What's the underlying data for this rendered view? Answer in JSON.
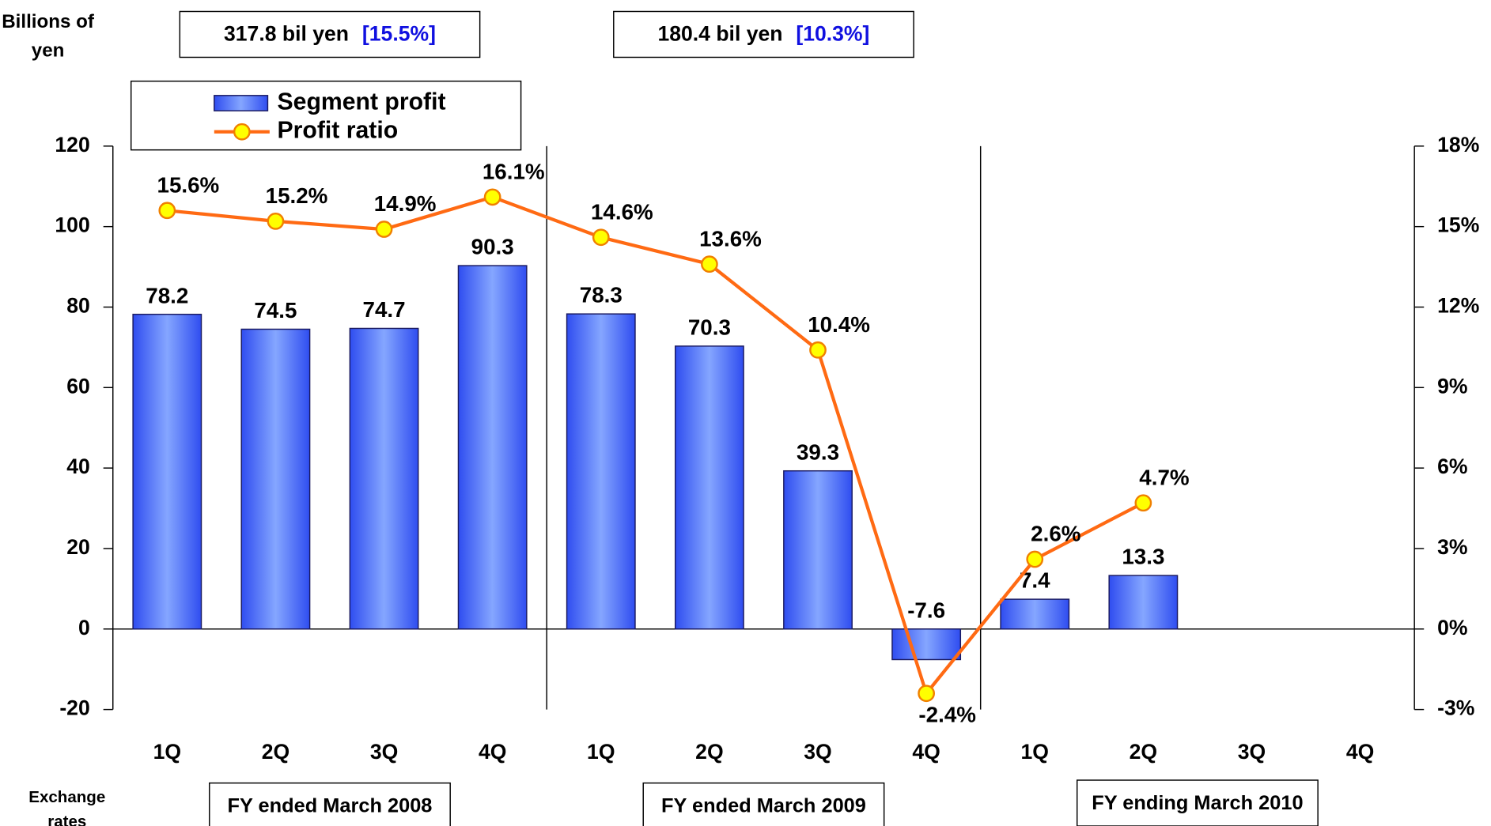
{
  "chart_data": {
    "type": "bar",
    "y_label": "Billions of yen",
    "bottom_label": "Exchange rates",
    "categories": [
      "1Q",
      "2Q",
      "3Q",
      "4Q",
      "1Q",
      "2Q",
      "3Q",
      "4Q",
      "1Q",
      "2Q",
      "3Q",
      "4Q"
    ],
    "groups": [
      "FY ended March 2008",
      "FY ended March 2009",
      "FY ending March 2010"
    ],
    "annotations": [
      {
        "text": "317.8 bil yen",
        "ratio": "[15.5%]"
      },
      {
        "text": "180.4 bil yen",
        "ratio": "[10.3%]"
      }
    ],
    "series": [
      {
        "name": "Segment profit",
        "type": "bar",
        "color": "#4a6cff",
        "values": [
          78.2,
          74.5,
          74.7,
          90.3,
          78.3,
          70.3,
          39.3,
          -7.6,
          7.4,
          13.3,
          null,
          null
        ]
      },
      {
        "name": "Profit ratio",
        "type": "line",
        "axis": "y2",
        "color": "#ff6a13",
        "marker_color": "#ffff00",
        "values": [
          15.6,
          15.2,
          14.9,
          16.1,
          14.6,
          13.6,
          10.4,
          -2.4,
          2.6,
          4.7,
          null,
          null
        ],
        "value_labels": [
          "15.6%",
          "15.2%",
          "14.9%",
          "16.1%",
          "14.6%",
          "13.6%",
          "10.4%",
          "-2.4%",
          "2.6%",
          "4.7%",
          null,
          null
        ]
      }
    ],
    "ylim": [
      -20,
      120
    ],
    "yticks": [
      -20,
      0,
      20,
      40,
      60,
      80,
      100,
      120
    ],
    "y2lim": [
      -3,
      18
    ],
    "y2ticks": [
      {
        "value": -3,
        "label": "-3%"
      },
      {
        "value": 0,
        "label": "0%"
      },
      {
        "value": 3,
        "label": "3%"
      },
      {
        "value": 6,
        "label": "6%"
      },
      {
        "value": 9,
        "label": "9%"
      },
      {
        "value": 12,
        "label": "12%"
      },
      {
        "value": 15,
        "label": "15%"
      },
      {
        "value": 18,
        "label": "18%"
      }
    ],
    "ratio_label_color": "#1010e0",
    "negative_color": "#ff0000",
    "legend": "top-left"
  }
}
